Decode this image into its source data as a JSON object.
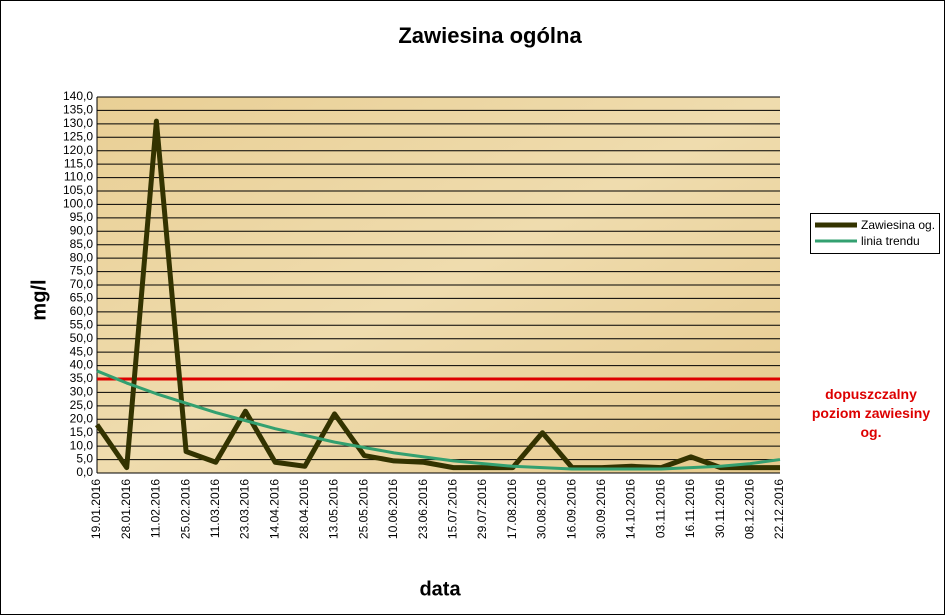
{
  "chart_data": {
    "type": "line",
    "title": "Zawiesina ogólna",
    "x_label": "data",
    "y_label": "mg/l",
    "categories": [
      "19.01.2016",
      "28.01.2016",
      "11.02.2016",
      "25.02.2016",
      "11.03.2016",
      "23.03.2016",
      "14.04.2016",
      "28.04.2016",
      "13.05.2016",
      "25.05.2016",
      "10.06.2016",
      "23.06.2016",
      "15.07.2016",
      "29.07.2016",
      "17.08.2016",
      "30.08.2016",
      "16.09.2016",
      "30.09.2016",
      "14.10.2016",
      "03.11.2016",
      "16.11.2016",
      "30.11.2016",
      "08.12.2016",
      "22.12.2016"
    ],
    "series": [
      {
        "name": "Zawiesina og.",
        "color": "#333300",
        "width": 5,
        "values": [
          18,
          2,
          131,
          8,
          4,
          23,
          4,
          2.5,
          22,
          6.5,
          4.5,
          4,
          2,
          2,
          2,
          15,
          2,
          2,
          2.5,
          2,
          6,
          2,
          2,
          2
        ]
      },
      {
        "name": "linia trendu",
        "color": "#33a070",
        "width": 3,
        "values": [
          38,
          33.5,
          29.5,
          26,
          22.5,
          19.5,
          16.5,
          14,
          11.5,
          9.5,
          7.5,
          6,
          4.5,
          3.5,
          2.5,
          2,
          1.5,
          1.5,
          1.5,
          1.5,
          2,
          2.5,
          3.5,
          5
        ]
      }
    ],
    "threshold": {
      "value": 35,
      "label": "dopuszczalny poziom zawiesiny og.",
      "color": "#dd0000"
    },
    "ylim": [
      0,
      140
    ],
    "yticks": [
      {
        "value": 0,
        "label": "0,0"
      },
      {
        "value": 5,
        "label": "5,0"
      },
      {
        "value": 10,
        "label": "10,0"
      },
      {
        "value": 15,
        "label": "15,0"
      },
      {
        "value": 20,
        "label": "20,0"
      },
      {
        "value": 25,
        "label": "25,0"
      },
      {
        "value": 30,
        "label": "30,0"
      },
      {
        "value": 35,
        "label": "35,0"
      },
      {
        "value": 40,
        "label": "40,0"
      },
      {
        "value": 45,
        "label": "45,0"
      },
      {
        "value": 50,
        "label": "50,0"
      },
      {
        "value": 55,
        "label": "55,0"
      },
      {
        "value": 60,
        "label": "60,0"
      },
      {
        "value": 65,
        "label": "65,0"
      },
      {
        "value": 70,
        "label": "70,0"
      },
      {
        "value": 75,
        "label": "75,0"
      },
      {
        "value": 80,
        "label": "80,0"
      },
      {
        "value": 85,
        "label": "85,0"
      },
      {
        "value": 90,
        "label": "90,0"
      },
      {
        "value": 95,
        "label": "95,0"
      },
      {
        "value": 100,
        "label": "100,0"
      },
      {
        "value": 105,
        "label": "105,0"
      },
      {
        "value": 110,
        "label": "110,0"
      },
      {
        "value": 115,
        "label": "115,0"
      },
      {
        "value": 120,
        "label": "120,0"
      },
      {
        "value": 125,
        "label": "125,0"
      },
      {
        "value": 130,
        "label": "130,0"
      },
      {
        "value": 135,
        "label": "135,0"
      },
      {
        "value": 140,
        "label": "140,0"
      }
    ],
    "grid": true
  }
}
